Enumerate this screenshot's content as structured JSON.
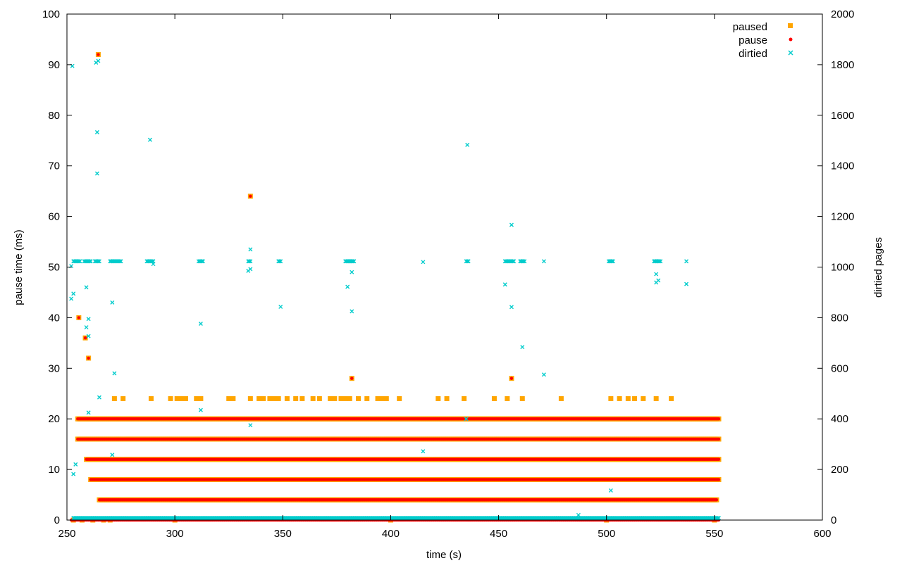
{
  "chart_data": {
    "type": "scatter",
    "xlabel": "time (s)",
    "ylabel": "pause time (ms)",
    "y2label": "dirtied pages",
    "xlim": [
      250,
      600
    ],
    "ylim": [
      0,
      100
    ],
    "y2lim": [
      0,
      2000
    ],
    "xticks": [
      250,
      300,
      350,
      400,
      450,
      500,
      550,
      600
    ],
    "yticks": [
      0,
      10,
      20,
      30,
      40,
      50,
      60,
      70,
      80,
      90,
      100
    ],
    "y2ticks": [
      0,
      200,
      400,
      600,
      800,
      1000,
      1200,
      1400,
      1600,
      1800,
      2000
    ],
    "grid": false,
    "legend_position": "top-right",
    "series": [
      {
        "name": "paused",
        "axis": "left",
        "marker": "square",
        "color": "#ffa500",
        "points": [
          [
            264.5,
            92
          ],
          [
            335,
            64
          ],
          [
            255.5,
            40
          ],
          [
            258.5,
            36
          ],
          [
            260,
            32
          ],
          [
            382,
            28
          ],
          [
            456,
            28
          ],
          [
            272,
            24
          ],
          [
            276,
            24
          ],
          [
            289,
            24
          ],
          [
            298,
            24
          ],
          [
            301,
            24
          ],
          [
            303,
            24
          ],
          [
            305,
            24
          ],
          [
            310,
            24
          ],
          [
            312,
            24
          ],
          [
            325,
            24
          ],
          [
            327,
            24
          ],
          [
            335,
            24
          ],
          [
            339,
            24
          ],
          [
            341,
            24
          ],
          [
            344,
            24
          ],
          [
            346,
            24
          ],
          [
            348,
            24
          ],
          [
            352,
            24
          ],
          [
            356,
            24
          ],
          [
            359,
            24
          ],
          [
            364,
            24
          ],
          [
            367,
            24
          ],
          [
            372,
            24
          ],
          [
            374,
            24
          ],
          [
            377,
            24
          ],
          [
            379,
            24
          ],
          [
            381,
            24
          ],
          [
            385,
            24
          ],
          [
            389,
            24
          ],
          [
            394,
            24
          ],
          [
            396,
            24
          ],
          [
            398,
            24
          ],
          [
            404,
            24
          ],
          [
            422,
            24
          ],
          [
            426,
            24
          ],
          [
            434,
            24
          ],
          [
            448,
            24
          ],
          [
            454,
            24
          ],
          [
            461,
            24
          ],
          [
            479,
            24
          ],
          [
            502,
            24
          ],
          [
            506,
            24
          ],
          [
            510,
            24
          ],
          [
            513,
            24
          ],
          [
            517,
            24
          ],
          [
            523,
            24
          ],
          [
            530,
            24
          ],
          [
            253,
            0
          ],
          [
            257,
            0
          ],
          [
            262,
            0
          ],
          [
            267,
            0
          ],
          [
            270,
            0
          ],
          [
            300,
            0
          ],
          [
            400,
            0
          ],
          [
            500,
            0
          ],
          [
            550,
            0
          ]
        ],
        "bands": [
          {
            "y": 20,
            "from": 255,
            "to": 552
          },
          {
            "y": 16,
            "from": 255,
            "to": 552
          },
          {
            "y": 12,
            "from": 259,
            "to": 552
          },
          {
            "y": 8,
            "from": 261,
            "to": 552
          },
          {
            "y": 4,
            "from": 265,
            "to": 551
          }
        ]
      },
      {
        "name": "pause",
        "axis": "left",
        "marker": "dot",
        "color": "#ff0000",
        "points": [
          [
            264.5,
            92
          ],
          [
            335,
            64
          ],
          [
            255.5,
            40
          ],
          [
            258.5,
            36
          ],
          [
            260,
            32
          ],
          [
            382,
            28
          ],
          [
            456,
            28
          ]
        ],
        "bands": [
          {
            "y": 20,
            "from": 255,
            "to": 552
          },
          {
            "y": 16,
            "from": 255,
            "to": 552
          },
          {
            "y": 12,
            "from": 259,
            "to": 552
          },
          {
            "y": 8,
            "from": 261,
            "to": 552
          },
          {
            "y": 4,
            "from": 265,
            "to": 551
          },
          {
            "y": 0,
            "from": 252,
            "to": 552
          }
        ]
      },
      {
        "name": "dirtied",
        "axis": "right",
        "marker": "cross",
        "color": "#00cccc",
        "points": [
          [
            252.5,
            1795
          ],
          [
            263.5,
            1808
          ],
          [
            264.5,
            1815
          ],
          [
            264,
            1533
          ],
          [
            264,
            1370
          ],
          [
            288.5,
            1503
          ],
          [
            435.5,
            1483
          ],
          [
            456,
            1167
          ],
          [
            335,
            1070
          ],
          [
            252,
            1004
          ],
          [
            335,
            992
          ],
          [
            334,
            985
          ],
          [
            290,
            1012
          ],
          [
            380,
            1023
          ],
          [
            382,
            1023
          ],
          [
            381,
            1023
          ],
          [
            382,
            980
          ],
          [
            380,
            922
          ],
          [
            415,
            1020
          ],
          [
            453,
            931
          ],
          [
            457,
            1023
          ],
          [
            461,
            1023
          ],
          [
            471,
            1023
          ],
          [
            502,
            1023
          ],
          [
            523,
            1023
          ],
          [
            537,
            1023
          ],
          [
            523,
            972
          ],
          [
            524,
            947
          ],
          [
            523,
            939
          ],
          [
            537,
            933
          ],
          [
            253,
            895
          ],
          [
            252,
            875
          ],
          [
            259,
            920
          ],
          [
            271,
            860
          ],
          [
            349,
            843
          ],
          [
            382,
            825
          ],
          [
            456,
            842
          ],
          [
            260,
            795
          ],
          [
            259,
            762
          ],
          [
            260,
            727
          ],
          [
            312,
            776
          ],
          [
            461,
            684
          ],
          [
            471,
            575
          ],
          [
            272,
            580
          ],
          [
            265,
            485
          ],
          [
            312,
            435
          ],
          [
            260,
            425
          ],
          [
            335,
            375
          ],
          [
            435,
            400
          ],
          [
            415,
            272
          ],
          [
            271,
            258
          ],
          [
            254,
            220
          ],
          [
            253,
            182
          ],
          [
            502,
            117
          ],
          [
            487,
            20
          ]
        ],
        "bands": [
          {
            "y": 1023,
            "from": 253,
            "to": 256
          },
          {
            "y": 1023,
            "from": 258,
            "to": 261
          },
          {
            "y": 1023,
            "from": 263,
            "to": 265
          },
          {
            "y": 1023,
            "from": 270,
            "to": 275
          },
          {
            "y": 1023,
            "from": 287,
            "to": 290
          },
          {
            "y": 1023,
            "from": 311,
            "to": 313
          },
          {
            "y": 1023,
            "from": 334,
            "to": 335
          },
          {
            "y": 1023,
            "from": 348,
            "to": 349
          },
          {
            "y": 1023,
            "from": 379,
            "to": 383
          },
          {
            "y": 1023,
            "from": 435,
            "to": 436
          },
          {
            "y": 1023,
            "from": 453,
            "to": 457
          },
          {
            "y": 1023,
            "from": 460,
            "to": 462
          },
          {
            "y": 1023,
            "from": 501,
            "to": 503
          },
          {
            "y": 1023,
            "from": 522,
            "to": 525
          },
          {
            "y": 8,
            "from": 253,
            "to": 552
          }
        ]
      }
    ]
  }
}
